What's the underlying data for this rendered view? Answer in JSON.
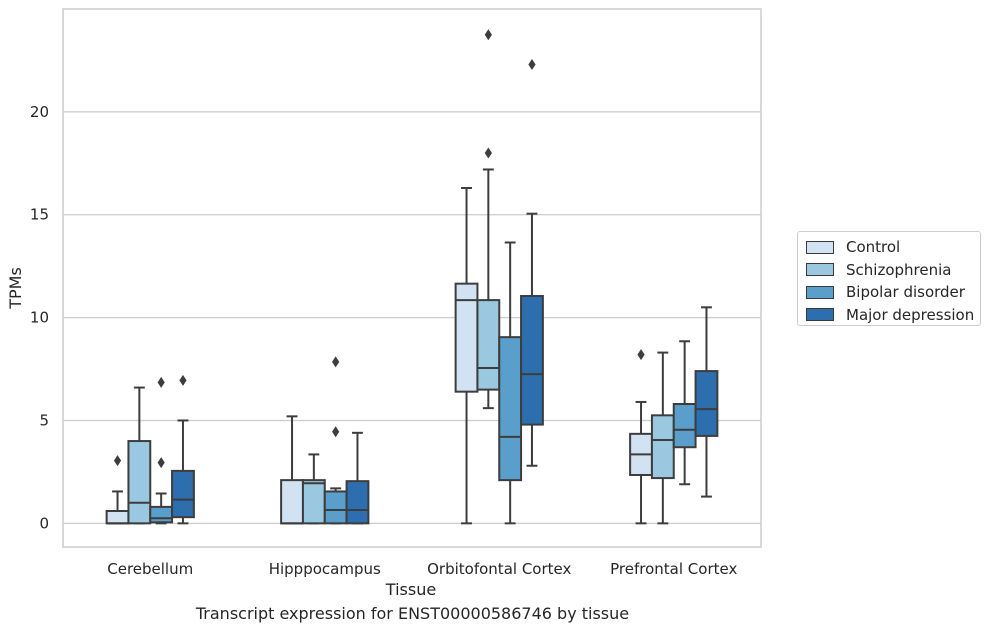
{
  "chart_data": {
    "type": "box",
    "title": "",
    "caption": "Transcript expression for ENST00000586746 by tissue",
    "xlabel": "Tissue",
    "ylabel": "TPMs",
    "ylim": [
      -1.15,
      25.0
    ],
    "yticks": [
      0,
      5,
      10,
      15,
      20
    ],
    "grid": "horizontal",
    "legend_position": "right",
    "categories": [
      "Cerebellum",
      "Hipppocampus",
      "Orbitofontal Cortex",
      "Prefrontal Cortex"
    ],
    "series": [
      {
        "name": "Control",
        "color": "#d1e2f2",
        "boxes": [
          {
            "whislo": 0,
            "q1": 0,
            "med": 0,
            "q3": 0.6,
            "whishi": 1.55,
            "fliers": [
              3.05
            ]
          },
          {
            "whislo": 0,
            "q1": 0,
            "med": 0,
            "q3": 2.1,
            "whishi": 5.2,
            "fliers": []
          },
          {
            "whislo": 0,
            "q1": 6.4,
            "med": 10.85,
            "q3": 11.65,
            "whishi": 16.3,
            "fliers": []
          },
          {
            "whislo": 0,
            "q1": 2.35,
            "med": 3.35,
            "q3": 4.35,
            "whishi": 5.9,
            "fliers": [
              8.2
            ]
          }
        ]
      },
      {
        "name": "Schizophrenia",
        "color": "#9ac8e0",
        "boxes": [
          {
            "whislo": 0,
            "q1": 0,
            "med": 1.0,
            "q3": 4.0,
            "whishi": 6.6,
            "fliers": []
          },
          {
            "whislo": 0,
            "q1": 0,
            "med": 1.95,
            "q3": 2.1,
            "whishi": 3.35,
            "fliers": []
          },
          {
            "whislo": 5.6,
            "q1": 6.5,
            "med": 7.55,
            "q3": 10.85,
            "whishi": 17.2,
            "fliers": [
              18.0,
              23.75
            ]
          },
          {
            "whislo": 0,
            "q1": 2.2,
            "med": 4.05,
            "q3": 5.25,
            "whishi": 8.3,
            "fliers": []
          }
        ]
      },
      {
        "name": "Bipolar disorder",
        "color": "#5a9fcc",
        "boxes": [
          {
            "whislo": 0,
            "q1": 0.05,
            "med": 0.25,
            "q3": 0.8,
            "whishi": 1.45,
            "fliers": [
              2.95,
              6.85
            ]
          },
          {
            "whislo": 0,
            "q1": 0,
            "med": 0.65,
            "q3": 1.55,
            "whishi": 1.7,
            "fliers": [
              4.45,
              7.85
            ]
          },
          {
            "whislo": 0,
            "q1": 2.1,
            "med": 4.2,
            "q3": 9.05,
            "whishi": 13.65,
            "fliers": []
          },
          {
            "whislo": 1.9,
            "q1": 3.7,
            "med": 4.55,
            "q3": 5.8,
            "whishi": 8.85,
            "fliers": []
          }
        ]
      },
      {
        "name": "Major depression",
        "color": "#2d6eae",
        "boxes": [
          {
            "whislo": 0,
            "q1": 0.3,
            "med": 1.15,
            "q3": 2.55,
            "whishi": 5.0,
            "fliers": [
              6.95
            ]
          },
          {
            "whislo": 0,
            "q1": 0,
            "med": 0.65,
            "q3": 2.05,
            "whishi": 4.4,
            "fliers": []
          },
          {
            "whislo": 2.8,
            "q1": 4.8,
            "med": 7.25,
            "q3": 11.05,
            "whishi": 15.05,
            "fliers": [
              22.3
            ]
          },
          {
            "whislo": 1.3,
            "q1": 4.25,
            "med": 5.55,
            "q3": 7.4,
            "whishi": 10.5,
            "fliers": []
          }
        ]
      }
    ]
  }
}
